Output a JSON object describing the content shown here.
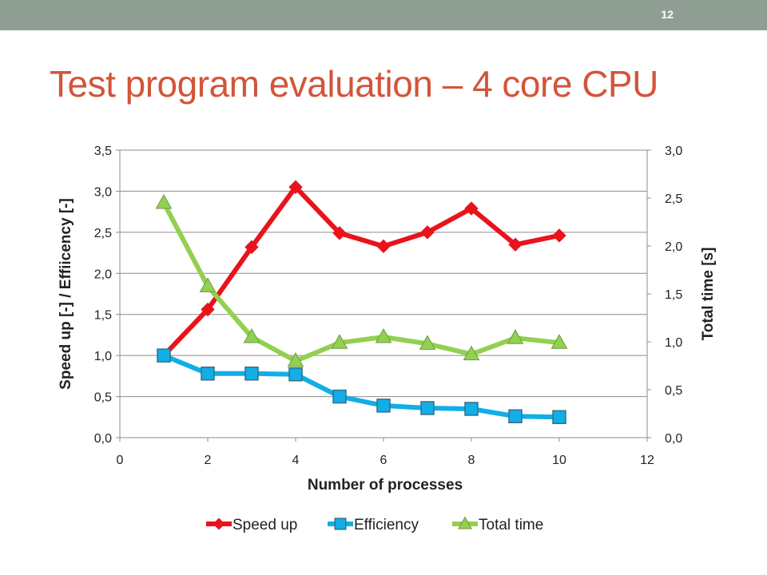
{
  "slide": {
    "number": "12",
    "title": "Test program evaluation – 4 core CPU"
  },
  "colors": {
    "top_bar": "#8f9e93",
    "title": "#d2553a",
    "speed_up": "#e8131b",
    "efficiency": "#11aee8",
    "total_time": "#92d050"
  },
  "chart_data": {
    "type": "line",
    "xlabel": "Number of processes",
    "ylabel": "Speed up [-] / Effiicency [-]",
    "y2label": "Total time [s]",
    "xlim": [
      0,
      12
    ],
    "ylim": [
      0,
      3.5
    ],
    "y2lim": [
      0,
      3.0
    ],
    "xticks": [
      "0",
      "2",
      "4",
      "6",
      "8",
      "10",
      "12"
    ],
    "yticks": [
      "0,0",
      "0,5",
      "1,0",
      "1,5",
      "2,0",
      "2,5",
      "3,0",
      "3,5"
    ],
    "y2ticks": [
      "0,0",
      "0,5",
      "1,0",
      "1,5",
      "2,0",
      "2,5",
      "3,0"
    ],
    "grid": "horizontal",
    "legend_position": "bottom",
    "series": [
      {
        "name": "Speed up",
        "axis": "left",
        "marker": "diamond",
        "x": [
          1,
          2,
          3,
          4,
          5,
          6,
          7,
          8,
          9,
          10
        ],
        "y": [
          1.0,
          1.56,
          2.32,
          3.05,
          2.49,
          2.33,
          2.5,
          2.79,
          2.35,
          2.46
        ]
      },
      {
        "name": "Efficiency",
        "axis": "left",
        "marker": "square",
        "x": [
          1,
          2,
          3,
          4,
          5,
          6,
          7,
          8,
          9,
          10
        ],
        "y": [
          1.0,
          0.78,
          0.78,
          0.77,
          0.5,
          0.39,
          0.36,
          0.35,
          0.26,
          0.25
        ]
      },
      {
        "name": "Total time",
        "axis": "right",
        "marker": "triangle",
        "x": [
          1,
          2,
          3,
          4,
          5,
          6,
          7,
          8,
          9,
          10
        ],
        "y": [
          2.45,
          1.58,
          1.05,
          0.8,
          0.99,
          1.05,
          0.98,
          0.87,
          1.04,
          0.99
        ]
      }
    ]
  }
}
